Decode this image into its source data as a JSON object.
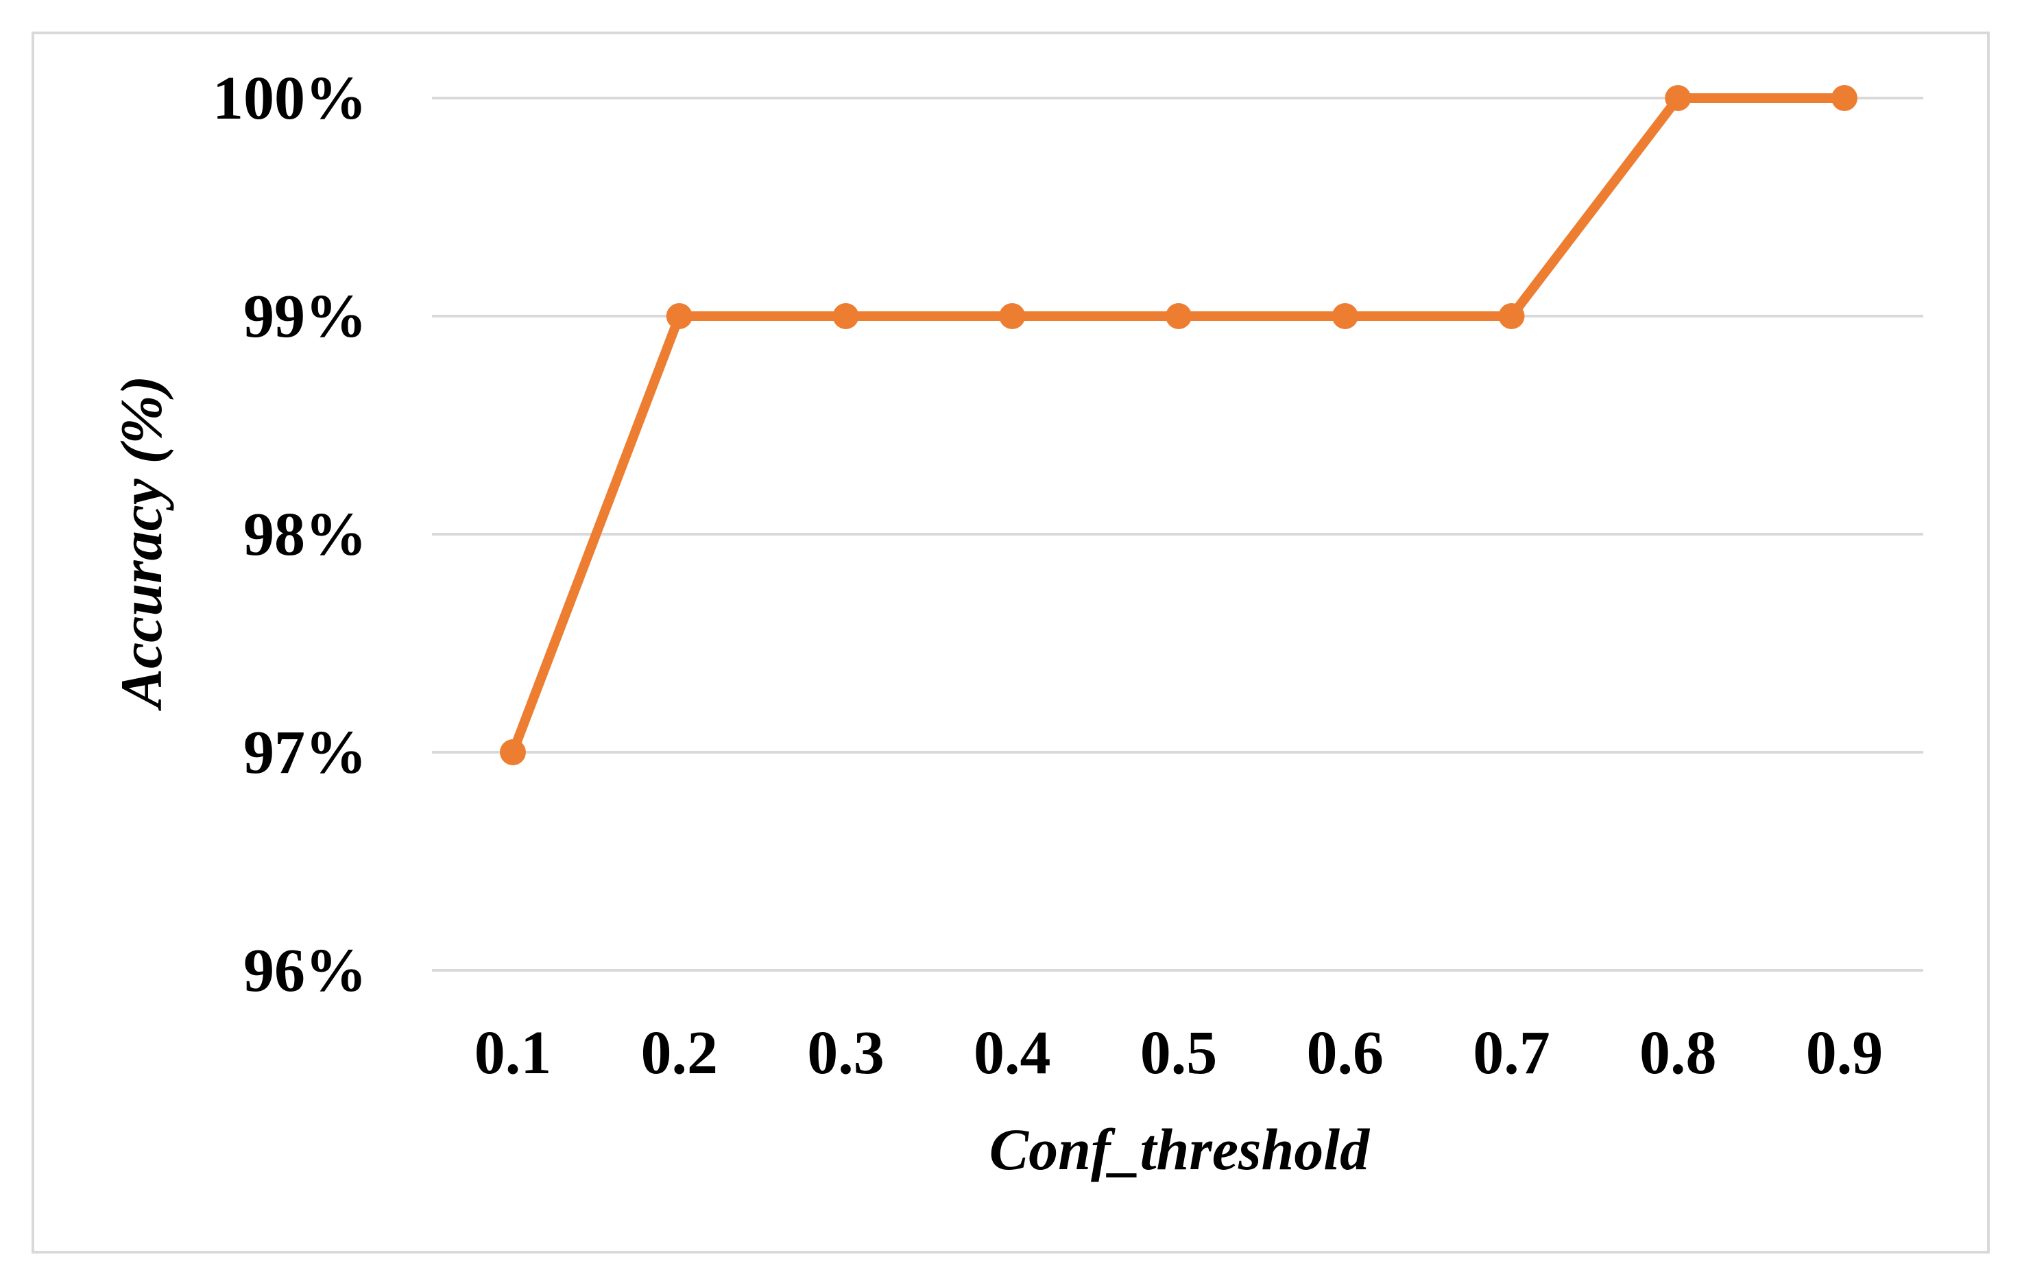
{
  "chart_data": {
    "type": "line",
    "xlabel": "Conf_threshold",
    "ylabel": "Accuracy (%)",
    "categories": [
      "0.1",
      "0.2",
      "0.3",
      "0.4",
      "0.5",
      "0.6",
      "0.7",
      "0.8",
      "0.9"
    ],
    "series": [
      {
        "values": [
          97,
          99,
          99,
          99,
          99,
          99,
          99,
          100,
          100
        ],
        "color": "#ed7d31"
      }
    ],
    "ylim": [
      96,
      100
    ],
    "yticks": [
      96,
      97,
      98,
      99,
      100
    ],
    "ytick_labels": [
      "96%",
      "97%",
      "98%",
      "99%",
      "100%"
    ],
    "grid": true,
    "legend": "none"
  }
}
